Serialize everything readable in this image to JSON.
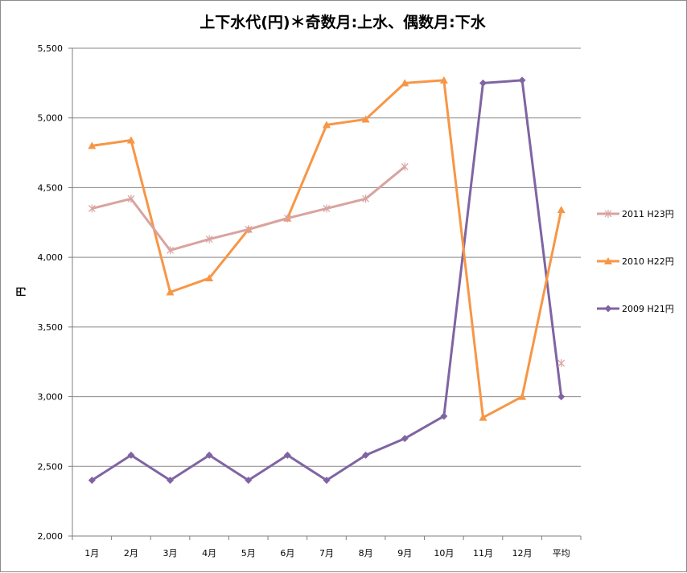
{
  "chart_data": {
    "type": "line",
    "title": "上下水代(円)＊奇数月:上水、偶数月:下水",
    "xlabel": "",
    "ylabel": "円",
    "ylim": [
      2000,
      5500
    ],
    "y_ticks": [
      "2,000",
      "2,500",
      "3,000",
      "3,500",
      "4,000",
      "4,500",
      "5,000",
      "5,500"
    ],
    "categories": [
      "1月",
      "2月",
      "3月",
      "4月",
      "5月",
      "6月",
      "7月",
      "8月",
      "9月",
      "10月",
      "11月",
      "12月",
      "平均"
    ],
    "grid": "horizontal",
    "legend_position": "right",
    "series": [
      {
        "name": "2011 H23円",
        "color": "#d9a3a0",
        "marker": "star",
        "values": [
          4350,
          4420,
          4050,
          4130,
          4200,
          4280,
          4350,
          4420,
          4650,
          null,
          null,
          null,
          3240
        ]
      },
      {
        "name": "2010 H22円",
        "color": "#f79646",
        "marker": "triangle",
        "values": [
          4800,
          4840,
          3750,
          3850,
          4200,
          4280,
          4950,
          4990,
          5250,
          5270,
          2850,
          3000,
          4340
        ]
      },
      {
        "name": "2009 H21円",
        "color": "#8064a2",
        "marker": "diamond",
        "values": [
          2400,
          2580,
          2400,
          2580,
          2400,
          2580,
          2400,
          2580,
          2700,
          2860,
          5250,
          5270,
          3000
        ]
      }
    ]
  }
}
